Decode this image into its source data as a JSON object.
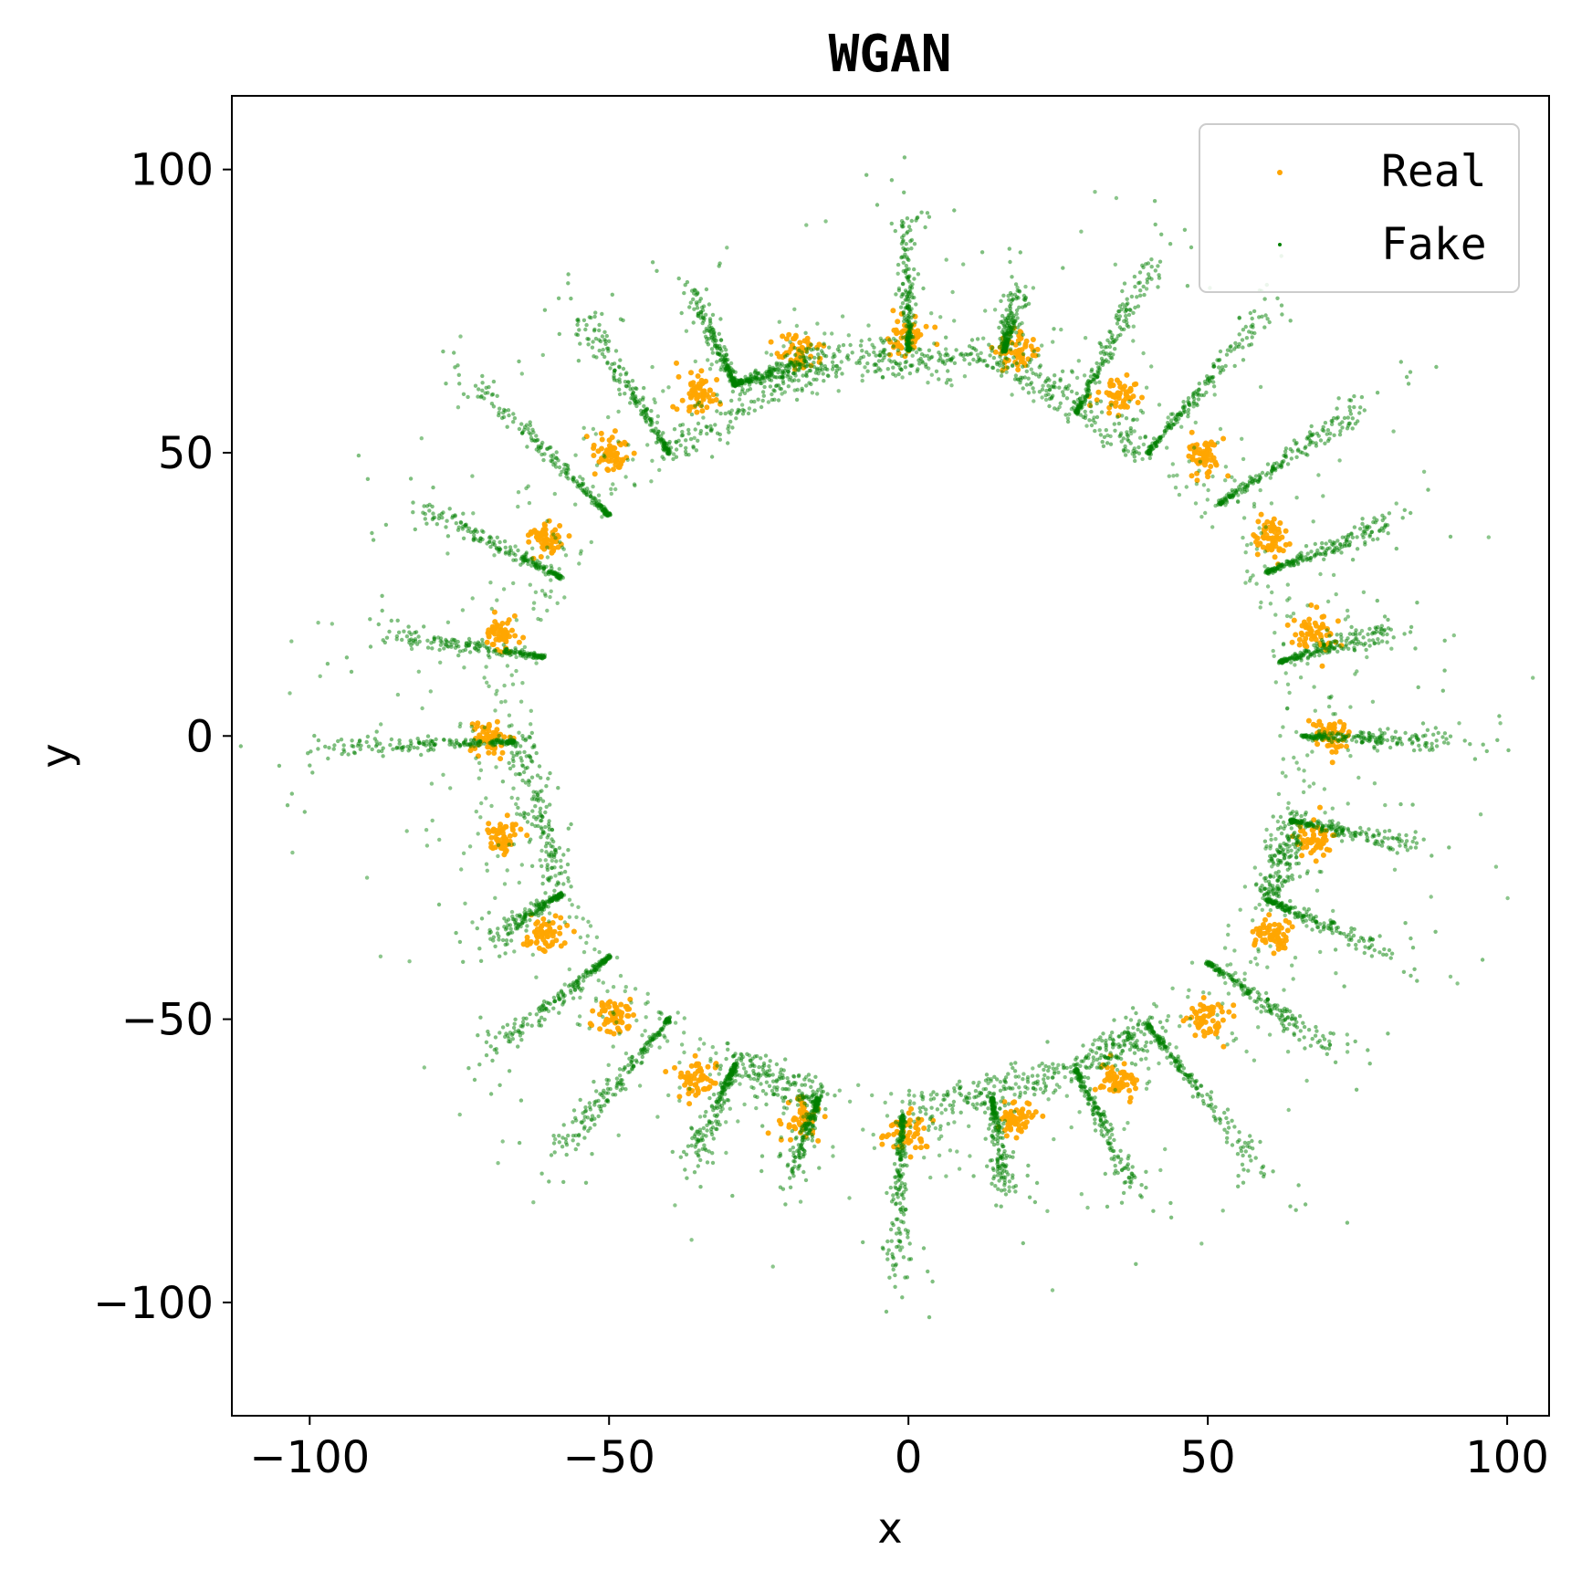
{
  "chart_data": {
    "type": "scatter",
    "title": "WGAN",
    "xlabel": "x",
    "ylabel": "y",
    "xlim": [
      -113,
      107
    ],
    "ylim": [
      -120,
      113
    ],
    "xticks": [
      -100,
      -50,
      0,
      50,
      100
    ],
    "yticks": [
      -100,
      -50,
      0,
      50,
      100
    ],
    "xtick_labels": [
      "−100",
      "−50",
      "0",
      "50",
      "100"
    ],
    "ytick_labels": [
      "−100",
      "−50",
      "0",
      "50",
      "100"
    ],
    "legend_position": "top-right",
    "series": [
      {
        "name": "Real",
        "color": "#FFA500",
        "description": "24 Gaussian clusters arranged on a ring of radius ~70",
        "ring_radius": 70,
        "cluster_count": 24,
        "cluster_std": 1.6,
        "points_per_cluster": 60
      },
      {
        "name": "Fake",
        "color": "#008000",
        "description": "generated samples forming radial streaks from the inner ring outward",
        "streaks": [
          {
            "x1": -66,
            "y1": -1,
            "x2": -100,
            "y2": -2
          },
          {
            "x1": -61,
            "y1": 14,
            "x2": -88,
            "y2": 18
          },
          {
            "x1": -58,
            "y1": 28,
            "x2": -81,
            "y2": 40
          },
          {
            "x1": -50,
            "y1": 39,
            "x2": -73,
            "y2": 63
          },
          {
            "x1": -40,
            "y1": 50,
            "x2": -54,
            "y2": 74
          },
          {
            "x1": -29,
            "y1": 62,
            "x2": -36,
            "y2": 78
          },
          {
            "x1": -29,
            "y1": 62,
            "x2": -15,
            "y2": 67
          },
          {
            "x1": 0,
            "y1": 68,
            "x2": 0,
            "y2": 92
          },
          {
            "x1": 16,
            "y1": 68,
            "x2": 18,
            "y2": 78
          },
          {
            "x1": 28,
            "y1": 57,
            "x2": 41,
            "y2": 84
          },
          {
            "x1": 40,
            "y1": 50,
            "x2": 60,
            "y2": 75
          },
          {
            "x1": 52,
            "y1": 41,
            "x2": 76,
            "y2": 58
          },
          {
            "x1": 60,
            "y1": 29,
            "x2": 80,
            "y2": 37
          },
          {
            "x1": 62,
            "y1": 13,
            "x2": 80,
            "y2": 19
          },
          {
            "x1": 66,
            "y1": 0,
            "x2": 90,
            "y2": -1
          },
          {
            "x1": 64,
            "y1": -15,
            "x2": 84,
            "y2": -19
          },
          {
            "x1": 60,
            "y1": -29,
            "x2": 80,
            "y2": -38
          },
          {
            "x1": 50,
            "y1": -40,
            "x2": 70,
            "y2": -55
          },
          {
            "x1": 40,
            "y1": -51,
            "x2": 60,
            "y2": -78
          },
          {
            "x1": 28,
            "y1": -59,
            "x2": 38,
            "y2": -80
          },
          {
            "x1": 14,
            "y1": -64,
            "x2": 16,
            "y2": -80
          },
          {
            "x1": -1,
            "y1": -67,
            "x2": -2,
            "y2": -95
          },
          {
            "x1": -15,
            "y1": -64,
            "x2": -20,
            "y2": -78
          },
          {
            "x1": -29,
            "y1": -58,
            "x2": -36,
            "y2": -75
          },
          {
            "x1": -40,
            "y1": -50,
            "x2": -58,
            "y2": -73
          },
          {
            "x1": -50,
            "y1": -39,
            "x2": -70,
            "y2": -56
          },
          {
            "x1": -58,
            "y1": -28,
            "x2": -70,
            "y2": -36
          }
        ],
        "connectors": [
          {
            "x1": -65,
            "y1": 0,
            "x2": -58,
            "y2": -27
          },
          {
            "x1": -40,
            "y1": 50,
            "x2": -15,
            "y2": 66
          },
          {
            "x1": -15,
            "y1": 66,
            "x2": 15,
            "y2": 67
          },
          {
            "x1": 15,
            "y1": 67,
            "x2": 40,
            "y2": 50
          },
          {
            "x1": 64,
            "y1": -15,
            "x2": 60,
            "y2": -29
          },
          {
            "x1": -29,
            "y1": -58,
            "x2": -15,
            "y2": -64
          },
          {
            "x1": -1,
            "y1": -67,
            "x2": 28,
            "y2": -59
          },
          {
            "x1": 28,
            "y1": -59,
            "x2": 40,
            "y2": -51
          }
        ]
      }
    ]
  }
}
